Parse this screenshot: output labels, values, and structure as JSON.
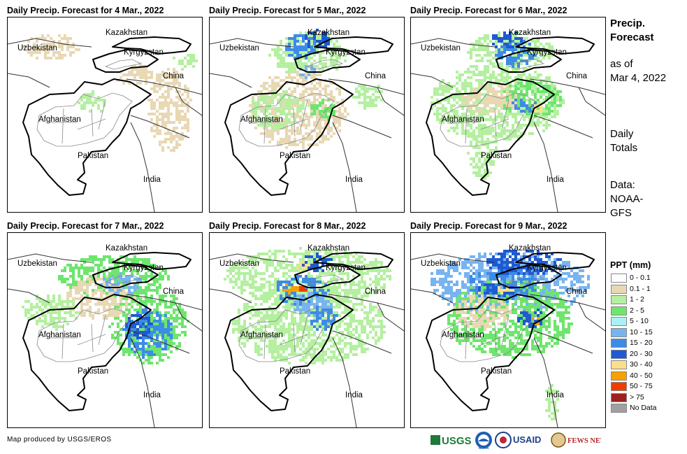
{
  "panels": [
    {
      "title": "Daily Precip. Forecast for 4 Mar., 2022"
    },
    {
      "title": "Daily Precip. Forecast for 5 Mar., 2022"
    },
    {
      "title": "Daily Precip. Forecast for 6 Mar., 2022"
    },
    {
      "title": "Daily Precip. Forecast for 7 Mar., 2022"
    },
    {
      "title": "Daily Precip. Forecast for 8 Mar., 2022"
    },
    {
      "title": "Daily Precip. Forecast for 9 Mar., 2022"
    }
  ],
  "map_labels": {
    "kazakhstan": "Kazakhstan",
    "uzbekistan": "Uzbekistan",
    "kyrgyzstan": "Kyrgyzstan",
    "china": "China",
    "afghanistan": "Afghanistan",
    "pakistan": "Pakistan",
    "india": "India"
  },
  "sidebar": {
    "title_line1": "Precip.",
    "title_line2": "Forecast",
    "asof_line1": "as of",
    "asof_line2": "Mar 4, 2022",
    "totals_line1": "Daily",
    "totals_line2": "Totals",
    "data_line1": "Data:",
    "data_line2": "NOAA-",
    "data_line3": "GFS"
  },
  "legend": {
    "title": "PPT (mm)",
    "items": [
      {
        "label": "0 - 0.1",
        "color": "#ffffff"
      },
      {
        "label": "0.1 - 1",
        "color": "#e8d8b4"
      },
      {
        "label": "1 - 2",
        "color": "#b4f0a0"
      },
      {
        "label": "2 - 5",
        "color": "#6ee66e"
      },
      {
        "label": "5 - 10",
        "color": "#aaf0f8"
      },
      {
        "label": "10 - 15",
        "color": "#78b4f0"
      },
      {
        "label": "15 - 20",
        "color": "#3c8ce6"
      },
      {
        "label": "20 - 30",
        "color": "#1e5ad2"
      },
      {
        "label": "30 - 40",
        "color": "#f8e08c"
      },
      {
        "label": "40 - 50",
        "color": "#f8a000"
      },
      {
        "label": "50 - 75",
        "color": "#f03c00"
      },
      {
        "label": "> 75",
        "color": "#a01e1e"
      },
      {
        "label": "No Data",
        "color": "#a0a0a0"
      }
    ]
  },
  "footer": {
    "credit": "Map produced by USGS/EROS",
    "logos": [
      "USGS",
      "NOAA",
      "USAID",
      "FEWS NET"
    ]
  }
}
